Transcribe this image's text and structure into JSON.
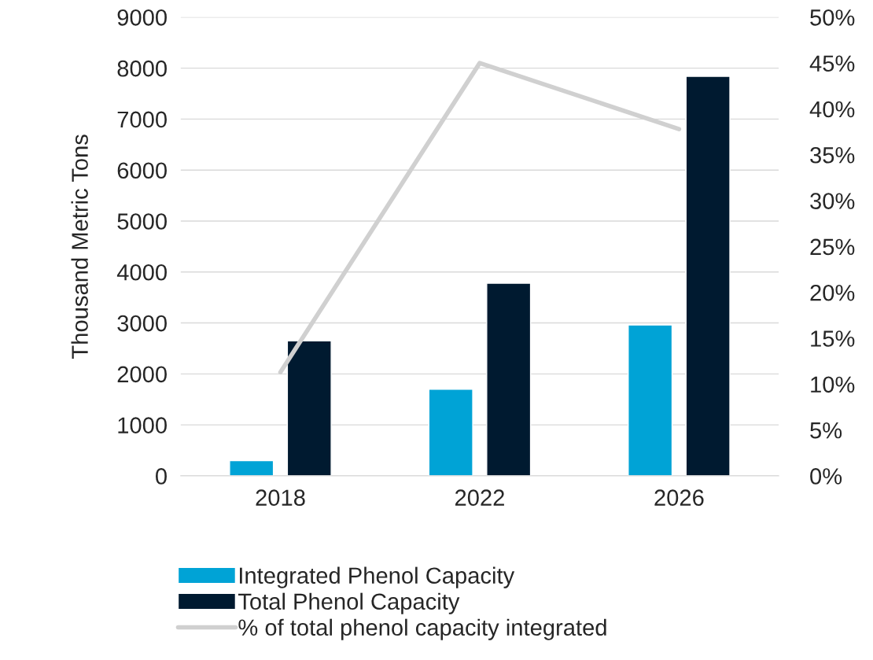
{
  "chart_data": {
    "type": "bar",
    "ylabel": "Thousand Metric Tons",
    "categories": [
      "2018",
      "2022",
      "2026"
    ],
    "series": [
      {
        "name": "Integrated Phenol Capacity",
        "color": "#00a3d6",
        "values": [
          300,
          1700,
          2960
        ]
      },
      {
        "name": "Total Phenol Capacity",
        "color": "#001a30",
        "values": [
          2650,
          3780,
          7840
        ]
      },
      {
        "name": "% of total phenol capacity integrated",
        "type": "line",
        "axis": "y2",
        "color": "#d0d0d0",
        "marker": "none",
        "values": [
          11.3,
          45.0,
          37.8
        ]
      }
    ],
    "ylim": [
      0,
      9000
    ],
    "yticks": [
      0,
      1000,
      2000,
      3000,
      4000,
      5000,
      6000,
      7000,
      8000,
      9000
    ],
    "y2lim": [
      0,
      50
    ],
    "y2ticks": [
      {
        "value": 0,
        "label": "0%"
      },
      {
        "value": 5,
        "label": "5%"
      },
      {
        "value": 10,
        "label": "10%"
      },
      {
        "value": 15,
        "label": "15%"
      },
      {
        "value": 20,
        "label": "20%"
      },
      {
        "value": 25,
        "label": "25%"
      },
      {
        "value": 30,
        "label": "30%"
      },
      {
        "value": 35,
        "label": "35%"
      },
      {
        "value": 40,
        "label": "40%"
      },
      {
        "value": 45,
        "label": "45%"
      },
      {
        "value": 50,
        "label": "50%"
      }
    ],
    "grid": "y",
    "legend": "bottom"
  }
}
